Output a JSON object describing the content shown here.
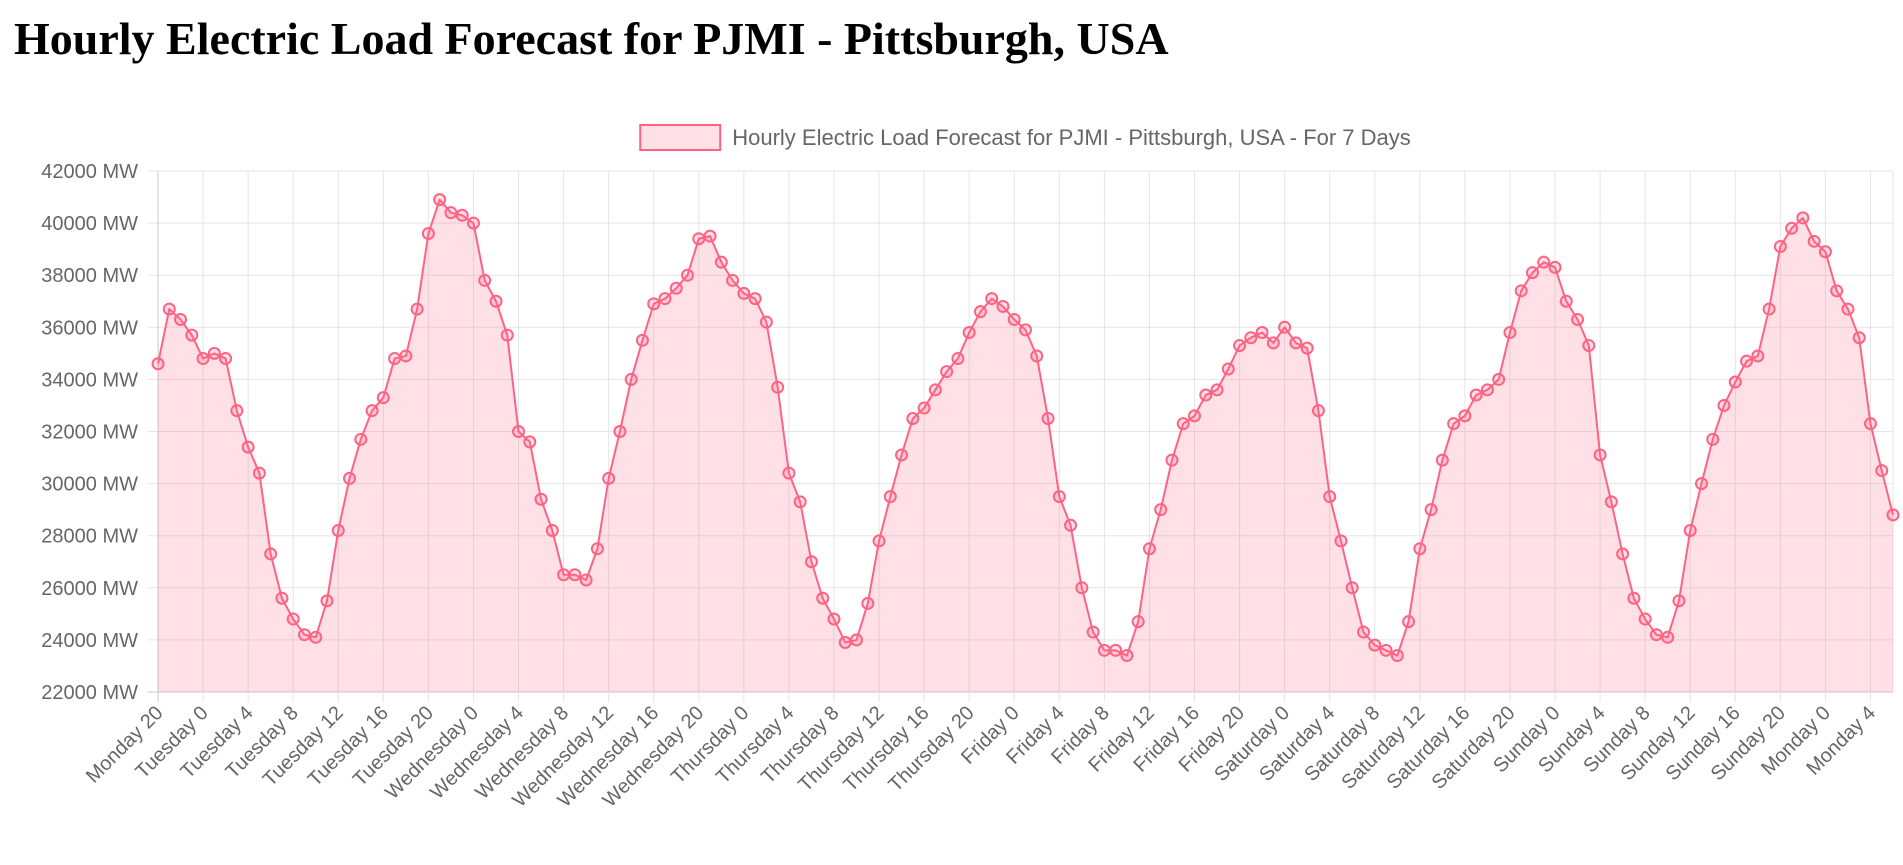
{
  "page": {
    "title": "Hourly Electric Load Forecast for PJMI - Pittsburgh, USA"
  },
  "colors": {
    "series_line": "#ff6384",
    "series_fill": "rgba(255, 99, 132, 0.2)",
    "grid": "#e5e5e5",
    "axis": "#c8c8c8",
    "tick_text": "#666666"
  },
  "chart_data": {
    "type": "area",
    "title": "",
    "xlabel": "",
    "ylabel": "",
    "ylim": [
      22000,
      42000
    ],
    "y_tick_step": 2000,
    "y_unit_suffix": " MW",
    "grid": true,
    "legend_position": "top",
    "x_tick_labels": [
      "Monday 20",
      "Tuesday 0",
      "Tuesday 4",
      "Tuesday 8",
      "Tuesday 12",
      "Tuesday 16",
      "Tuesday 20",
      "Wednesday 0",
      "Wednesday 4",
      "Wednesday 8",
      "Wednesday 12",
      "Wednesday 16",
      "Wednesday 20",
      "Thursday 0",
      "Thursday 4",
      "Thursday 8",
      "Thursday 12",
      "Thursday 16",
      "Thursday 20",
      "Friday 0",
      "Friday 4",
      "Friday 8",
      "Friday 12",
      "Friday 16",
      "Friday 20",
      "Saturday 0",
      "Saturday 4",
      "Saturday 8",
      "Saturday 12",
      "Saturday 16",
      "Saturday 20",
      "Sunday 0",
      "Sunday 4",
      "Sunday 8",
      "Sunday 12",
      "Sunday 16",
      "Sunday 20",
      "Monday 0",
      "Monday 4"
    ],
    "x_tick_every": 4,
    "series": [
      {
        "name": "Hourly Electric Load Forecast for PJMI - Pittsburgh, USA - For 7 Days",
        "values": [
          34600,
          36700,
          36300,
          35700,
          34800,
          35000,
          34800,
          32800,
          31400,
          30400,
          27300,
          25600,
          24800,
          24200,
          24100,
          25500,
          28200,
          30200,
          31700,
          32800,
          33300,
          34800,
          34900,
          36700,
          39600,
          40900,
          40400,
          40300,
          40000,
          37800,
          37000,
          35700,
          32000,
          31600,
          29400,
          28200,
          26500,
          26500,
          26300,
          27500,
          30200,
          32000,
          34000,
          35500,
          36900,
          37100,
          37500,
          38000,
          39400,
          39500,
          38500,
          37800,
          37300,
          37100,
          36200,
          33700,
          30400,
          29300,
          27000,
          25600,
          24800,
          23900,
          24000,
          25400,
          27800,
          29500,
          31100,
          32500,
          32900,
          33600,
          34300,
          34800,
          35800,
          36600,
          37100,
          36800,
          36300,
          35900,
          34900,
          32500,
          29500,
          28400,
          26000,
          24300,
          23600,
          23600,
          23400,
          24700,
          27500,
          29000,
          30900,
          32300,
          32600,
          33400,
          33600,
          34400,
          35300,
          35600,
          35800,
          35400,
          36000,
          35400,
          35200,
          32800,
          29500,
          27800,
          26000,
          24300,
          23800,
          23600,
          23400,
          24700,
          27500,
          29000,
          30900,
          32300,
          32600,
          33400,
          33600,
          34000,
          35800,
          37400,
          38100,
          38500,
          38300,
          37000,
          36300,
          35300,
          31100,
          29300,
          27300,
          25600,
          24800,
          24200,
          24100,
          25500,
          28200,
          30000,
          31700,
          33000,
          33900,
          34700,
          34900,
          36700,
          39100,
          39800,
          40200,
          39300,
          38900,
          37400,
          36700,
          35600,
          32300,
          30500,
          28800
        ]
      }
    ]
  }
}
